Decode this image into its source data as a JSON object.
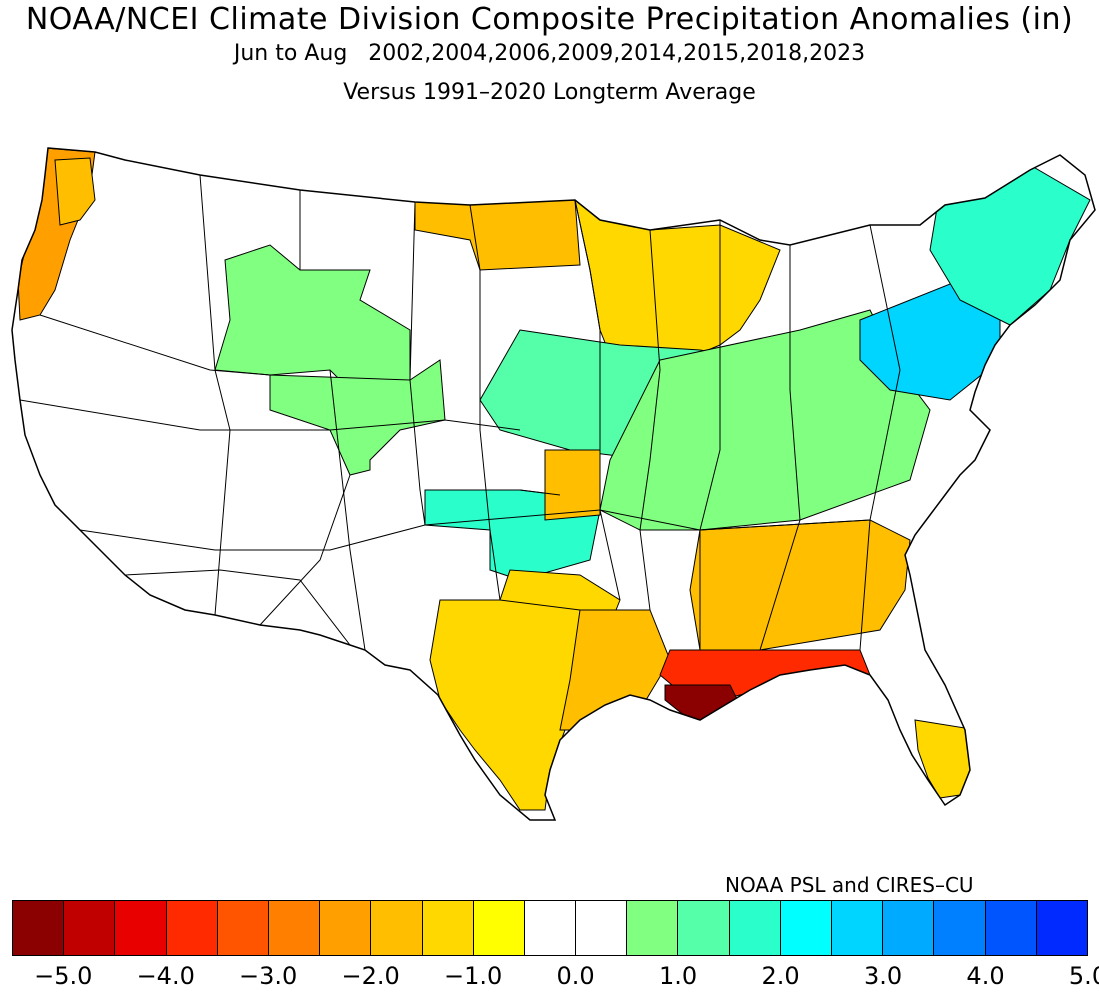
{
  "title": "NOAA/NCEI Climate Division Composite Precipitation Anomalies (in)",
  "subtitle": "Jun to Aug   2002,2004,2006,2009,2014,2015,2018,2023",
  "subtitle2": "Versus 1991–2020 Longterm Average",
  "credit": "NOAA PSL and CIRES–CU",
  "colorbar": {
    "colors": [
      "#8b0000",
      "#c00000",
      "#e80000",
      "#ff2a00",
      "#ff5500",
      "#ff7f00",
      "#ffa000",
      "#ffbe00",
      "#ffd800",
      "#ffff00",
      "#ffffff",
      "#ffffff",
      "#80ff80",
      "#55ffaa",
      "#2affcc",
      "#00ffff",
      "#00d5ff",
      "#00aaff",
      "#0080ff",
      "#0055ff",
      "#002aff"
    ],
    "tick_labels": [
      "−5.0",
      "−4.0",
      "−3.0",
      "−2.0",
      "−1.0",
      "0.0",
      "1.0",
      "2.0",
      "3.0",
      "4.0",
      "5.0"
    ]
  },
  "map": {
    "region": "Contiguous United States climate divisions",
    "anomaly_regions": [
      {
        "name": "Pacific Northwest coast",
        "anomaly_in": -2.0
      },
      {
        "name": "Western Washington interior",
        "anomaly_in": -1.5
      },
      {
        "name": "Northern Rockies / Montana",
        "anomaly_in": 1.0
      },
      {
        "name": "Wyoming / Colorado",
        "anomaly_in": 1.0
      },
      {
        "name": "North Dakota",
        "anomaly_in": -1.5
      },
      {
        "name": "Minnesota / Wisconsin",
        "anomaly_in": -1.0
      },
      {
        "name": "Iowa / Illinois",
        "anomaly_in": 1.5
      },
      {
        "name": "Ohio Valley",
        "anomaly_in": 1.0
      },
      {
        "name": "Pennsylvania / New York",
        "anomaly_in": 3.0
      },
      {
        "name": "New England",
        "anomaly_in": 2.0
      },
      {
        "name": "Oklahoma",
        "anomaly_in": 2.0
      },
      {
        "name": "Central Kansas",
        "anomaly_in": -1.5
      },
      {
        "name": "Texas",
        "anomaly_in": -1.0
      },
      {
        "name": "East Texas",
        "anomaly_in": -1.5
      },
      {
        "name": "Southeast (GA/AL/SC)",
        "anomaly_in": -1.5
      },
      {
        "name": "Gulf Coast",
        "anomaly_in": -3.5
      },
      {
        "name": "Southern Louisiana",
        "anomaly_in": -5.0
      },
      {
        "name": "South Florida",
        "anomaly_in": -1.0
      }
    ]
  }
}
